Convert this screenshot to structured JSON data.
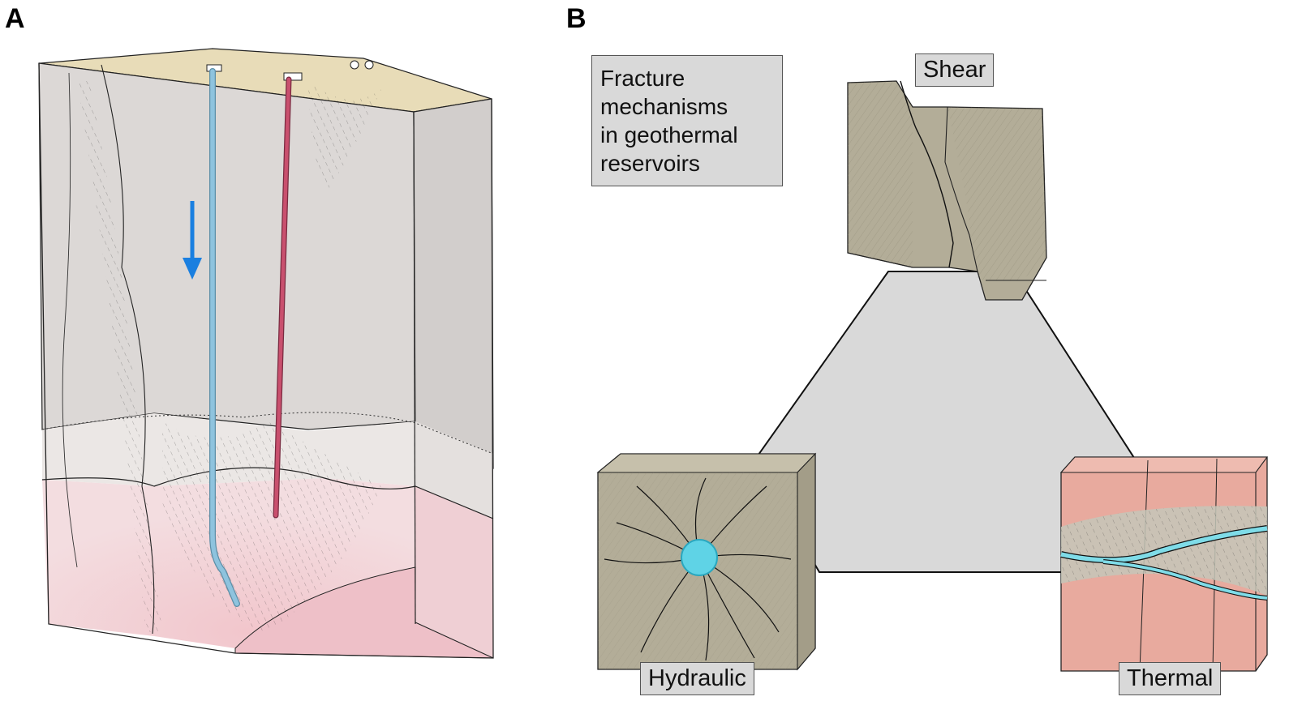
{
  "panels": {
    "a": {
      "letter": "A"
    },
    "b": {
      "letter": "B"
    }
  },
  "title_lines": [
    "Fracture",
    "mechanisms",
    "in geothermal",
    "reservoirs"
  ],
  "labels": {
    "shear": "Shear",
    "hydraulic": "Hydraulic",
    "thermal": "Thermal"
  },
  "colors": {
    "rock_gray": "#dcd8d6",
    "rock_pink": "#f0d6d8",
    "soil": "#e8dcb8",
    "injection_well": "#8ec3de",
    "production_well": "#c9506e",
    "flow_arrow": "#1a7fe0",
    "triangle_fill": "#d9d9d9",
    "block_olive": "#b3ad98",
    "block_pink": "#e8aa9e",
    "fluid_cyan": "#5fd3e6"
  },
  "icons": {
    "flow_arrow": "arrow-down-icon"
  }
}
